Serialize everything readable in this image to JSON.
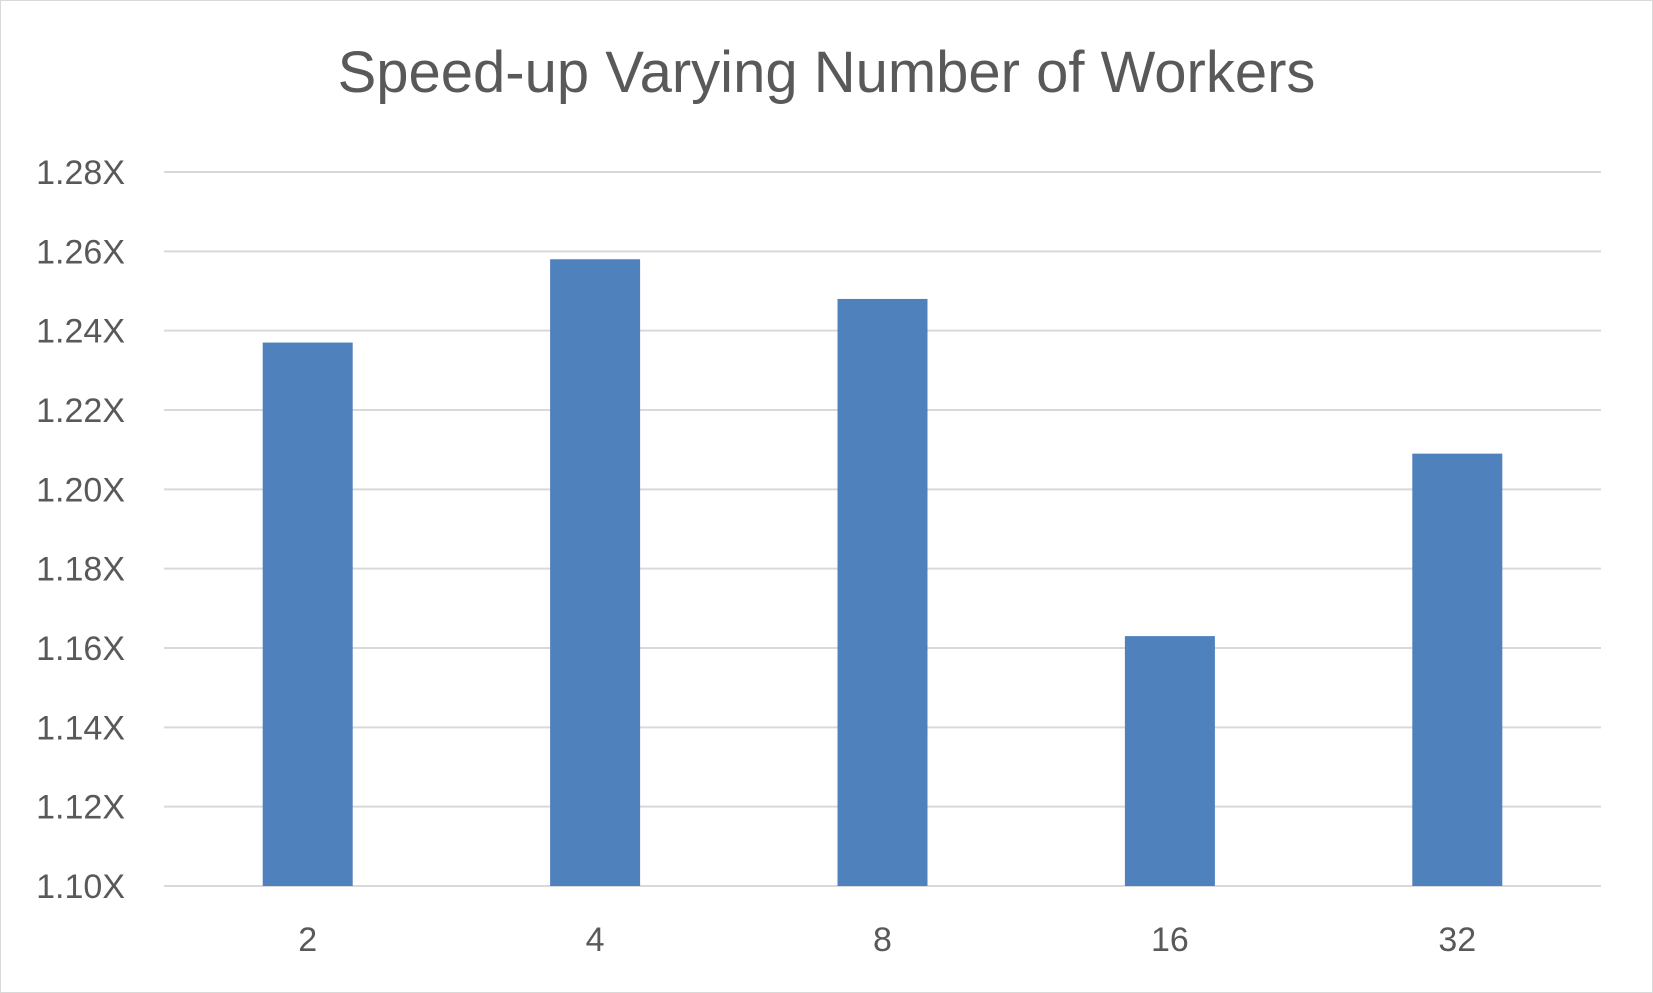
{
  "chart_data": {
    "type": "bar",
    "title": "Speed-up Varying Number of Workers",
    "xlabel": "",
    "ylabel": "",
    "categories": [
      "2",
      "4",
      "8",
      "16",
      "32"
    ],
    "values": [
      1.237,
      1.258,
      1.248,
      1.163,
      1.209
    ],
    "ylim": [
      1.1,
      1.28
    ],
    "yticks": [
      1.1,
      1.12,
      1.14,
      1.16,
      1.18,
      1.2,
      1.22,
      1.24,
      1.26,
      1.28
    ],
    "ytick_labels": [
      "1.10X",
      "1.12X",
      "1.14X",
      "1.16X",
      "1.18X",
      "1.20X",
      "1.22X",
      "1.24X",
      "1.26X",
      "1.28X"
    ],
    "grid": true,
    "legend": "none",
    "bar_color": "#4f81bd",
    "grid_color": "#d9d9d9",
    "text_color": "#595959"
  }
}
